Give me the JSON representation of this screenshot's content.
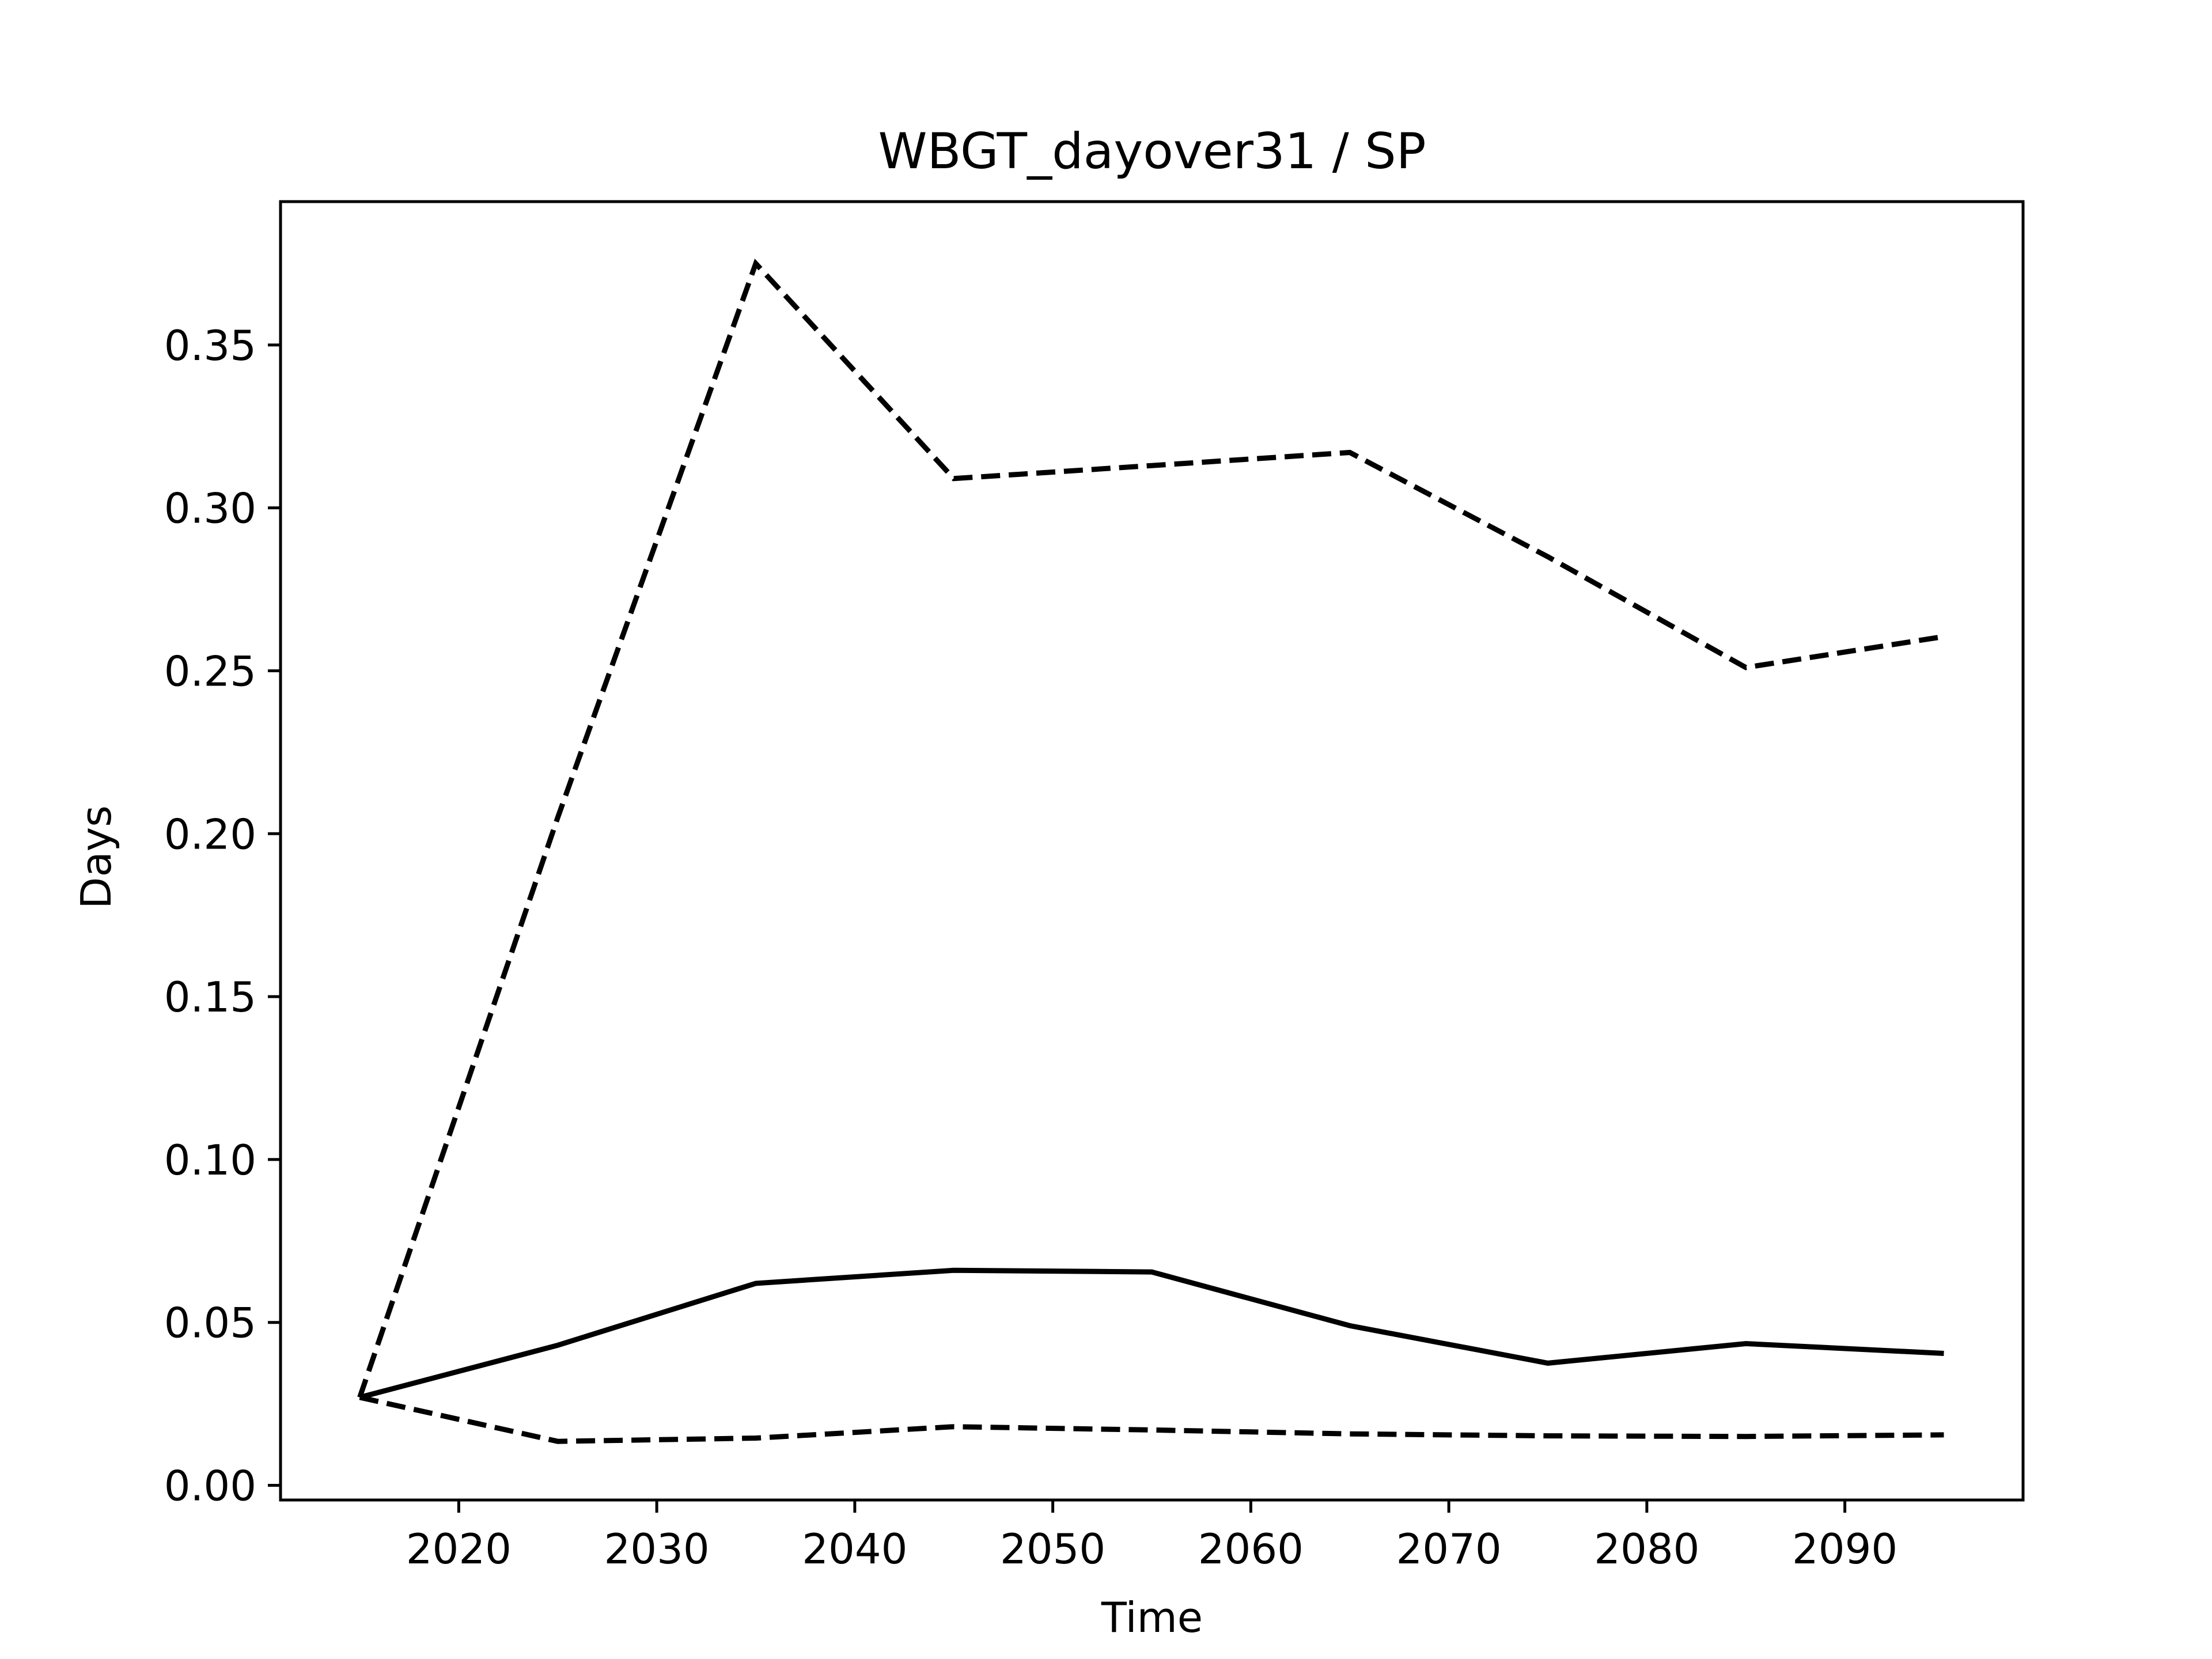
{
  "chart_data": {
    "type": "line",
    "title": "WBGT_dayover31 / SP",
    "xlabel": "Time",
    "ylabel": "Days",
    "xlim": [
      2011,
      2099
    ],
    "ylim": [
      -0.0045,
      0.394
    ],
    "xticks": [
      2020,
      2030,
      2040,
      2050,
      2060,
      2070,
      2080,
      2090
    ],
    "xtick_labels": [
      "2020",
      "2030",
      "2040",
      "2050",
      "2060",
      "2070",
      "2080",
      "2090"
    ],
    "yticks": [
      0.0,
      0.05,
      0.1,
      0.15,
      0.2,
      0.25,
      0.3,
      0.35
    ],
    "ytick_labels": [
      "0.00",
      "0.05",
      "0.10",
      "0.15",
      "0.20",
      "0.25",
      "0.30",
      "0.35"
    ],
    "grid": false,
    "x": [
      2015,
      2025,
      2035,
      2045,
      2055,
      2065,
      2075,
      2085,
      2095
    ],
    "series": [
      {
        "style": "solid",
        "color": "#000000",
        "values": [
          0.027,
          0.043,
          0.062,
          0.066,
          0.0655,
          0.049,
          0.0375,
          0.0435,
          0.0405
        ]
      },
      {
        "style": "dashed",
        "color": "#000000",
        "values": [
          0.027,
          0.205,
          0.375,
          0.309,
          0.313,
          0.317,
          0.285,
          0.251,
          0.2605
        ]
      },
      {
        "style": "dashed",
        "color": "#000000",
        "values": [
          0.027,
          0.0135,
          0.0145,
          0.018,
          0.017,
          0.0158,
          0.0152,
          0.015,
          0.0155
        ]
      }
    ]
  }
}
